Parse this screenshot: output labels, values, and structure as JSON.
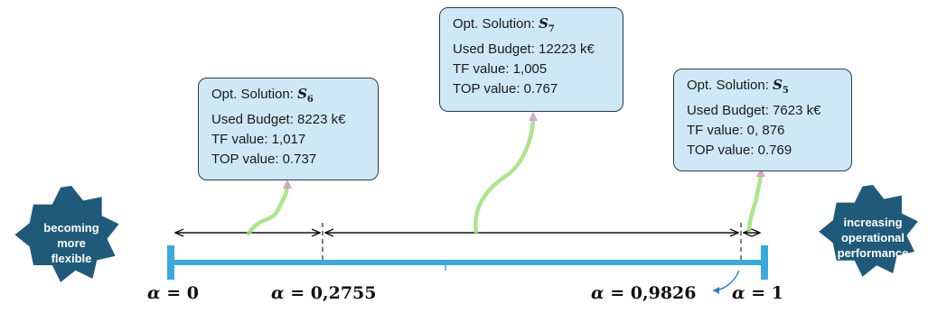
{
  "left_badge": {
    "lines": [
      "becoming",
      "more",
      "flexible"
    ]
  },
  "right_badge": {
    "lines": [
      "increasing",
      "operational",
      "performance"
    ]
  },
  "alpha_markers": [
    {
      "label": "α = 0",
      "symbol": "α",
      "value": "0"
    },
    {
      "label": "α = 0,2755",
      "symbol": "α",
      "value": "0,2755"
    },
    {
      "label": "α = 0,9826",
      "symbol": "α",
      "value": "0,9826"
    },
    {
      "label": "α = 1",
      "symbol": "α",
      "value": "1"
    }
  ],
  "solutions": [
    {
      "id": "S6",
      "title_prefix": "Opt. Solution: ",
      "symbol": "S",
      "subscript": "6",
      "budget": "Used Budget: 8223 k€",
      "tf": "TF value: 1,017",
      "top": "TOP value: 0.737"
    },
    {
      "id": "S7",
      "title_prefix": "Opt. Solution: ",
      "symbol": "S",
      "subscript": "7",
      "budget": "Used Budget: 12223 k€",
      "tf": "TF value: 1,005",
      "top": "TOP value: 0.767"
    },
    {
      "id": "S5",
      "title_prefix": "Opt. Solution: ",
      "symbol": "S",
      "subscript": "5",
      "budget": "Used Budget: 7623 k€",
      "tf": "TF value: 0, 876",
      "top": "TOP value: 0.769"
    }
  ],
  "colors": {
    "axis": "#3aa9e0",
    "badge": "#1f5a7a",
    "box_fill": "#cfe8f6",
    "connector": "#9ee07a",
    "arrow_tip": "#d7a6c8"
  }
}
